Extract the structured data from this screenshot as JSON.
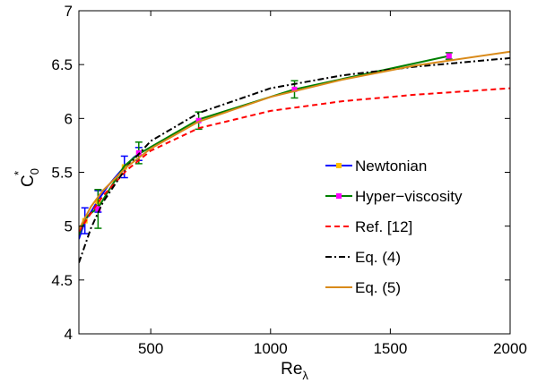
{
  "chart_data": {
    "type": "line",
    "xlabel": "Re",
    "xlabel_sub": "λ",
    "ylabel": "C",
    "ylabel_sub": "0",
    "ylabel_sup": "*",
    "xlim": [
      200,
      2000
    ],
    "ylim": [
      4,
      7
    ],
    "xticks": [
      500,
      1000,
      1500,
      2000
    ],
    "yticks": [
      4,
      4.5,
      5,
      5.5,
      6,
      6.5,
      7
    ],
    "grid": false,
    "legend_position": "right",
    "series": [
      {
        "name": "Newtonian",
        "color": "#0000ff",
        "style": "solid",
        "marker": "square",
        "marker_color": "#ffbf00",
        "x": [
          200,
          225,
          250,
          280,
          320,
          370,
          390,
          430,
          450
        ],
        "y": [
          4.88,
          5.05,
          5.13,
          5.24,
          5.37,
          5.5,
          5.55,
          5.64,
          5.67
        ],
        "markers": [
          {
            "x": 225,
            "y": 5.05,
            "err": 0.12
          },
          {
            "x": 280,
            "y": 5.23,
            "err": 0.1
          },
          {
            "x": 390,
            "y": 5.55,
            "err": 0.1
          },
          {
            "x": 450,
            "y": 5.67,
            "err": 0.06
          }
        ]
      },
      {
        "name": "Hyper−viscosity",
        "color": "#008000",
        "style": "solid",
        "marker": "square",
        "marker_color": "#ff00ff",
        "x": [
          200,
          225,
          250,
          280,
          330,
          390,
          450,
          700,
          1100,
          1745
        ],
        "y": [
          4.92,
          5.07,
          5.12,
          5.17,
          5.35,
          5.56,
          5.67,
          5.99,
          6.27,
          6.58
        ],
        "markers": [
          {
            "x": 280,
            "y": 5.16,
            "err": 0.18
          },
          {
            "x": 450,
            "y": 5.68,
            "err": 0.1
          },
          {
            "x": 700,
            "y": 5.98,
            "err": 0.08
          },
          {
            "x": 1100,
            "y": 6.27,
            "err": 0.08
          },
          {
            "x": 1745,
            "y": 6.58,
            "err": 0.03
          }
        ]
      },
      {
        "name": "Ref. [12]",
        "color": "#ff0000",
        "style": "dashed",
        "x": [
          200,
          250,
          300,
          400,
          500,
          700,
          1000,
          1300,
          1600,
          2000
        ],
        "y": [
          4.95,
          5.12,
          5.28,
          5.52,
          5.7,
          5.91,
          6.07,
          6.16,
          6.22,
          6.28
        ]
      },
      {
        "name": "Eq. (4)",
        "color": "#000000",
        "style": "dashdot",
        "x": [
          200,
          250,
          300,
          400,
          500,
          700,
          1000,
          1300,
          1600,
          2000
        ],
        "y": [
          4.66,
          4.98,
          5.22,
          5.55,
          5.79,
          6.05,
          6.28,
          6.4,
          6.48,
          6.56
        ]
      },
      {
        "name": "Eq. (5)",
        "color": "#d98a1a",
        "style": "solid",
        "x": [
          200,
          250,
          300,
          400,
          500,
          700,
          1000,
          1300,
          1600,
          2000
        ],
        "y": [
          4.97,
          5.18,
          5.33,
          5.55,
          5.72,
          5.97,
          6.2,
          6.36,
          6.49,
          6.62
        ]
      }
    ]
  }
}
